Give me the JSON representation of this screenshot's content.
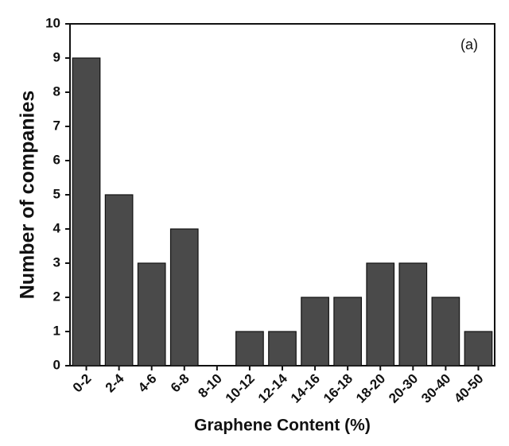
{
  "chart_data": {
    "type": "bar",
    "annotation": "(a)",
    "x_label": "Graphene Content (%)",
    "y_label": "Number of companies",
    "categories": [
      "0-2",
      "2-4",
      "4-6",
      "6-8",
      "8-10",
      "10-12",
      "12-14",
      "14-16",
      "16-18",
      "18-20",
      "20-30",
      "30-40",
      "40-50"
    ],
    "values": [
      9,
      5,
      3,
      4,
      0,
      1,
      1,
      2,
      2,
      3,
      3,
      2,
      1
    ],
    "color": "#4a4a4a",
    "ylim": [
      0,
      10
    ],
    "yticks": [
      0,
      1,
      2,
      3,
      4,
      5,
      6,
      7,
      8,
      9,
      10
    ],
    "grid": false
  }
}
